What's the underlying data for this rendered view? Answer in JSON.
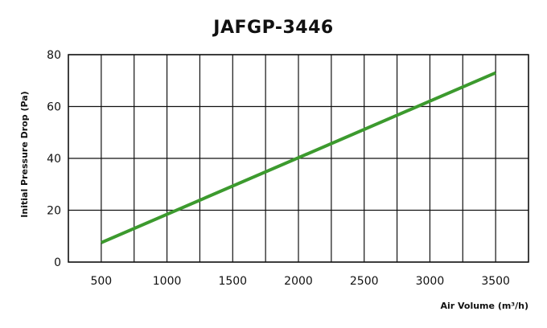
{
  "chart_data": {
    "type": "line",
    "title": "JAFGP-3446",
    "xlabel": "Air Volume (m³/h)",
    "ylabel": "Initial Pressure Drop (Pa)",
    "xlim": [
      250,
      3750
    ],
    "ylim": [
      0,
      80
    ],
    "xticks": [
      500,
      1000,
      1500,
      2000,
      2500,
      3000,
      3500
    ],
    "xgrid": [
      250,
      500,
      750,
      1000,
      1250,
      1500,
      1750,
      2000,
      2250,
      2500,
      2750,
      3000,
      3250,
      3500,
      3750
    ],
    "yticks": [
      0,
      20,
      40,
      60,
      80
    ],
    "ygrid": [
      0,
      20,
      40,
      60,
      80
    ],
    "grid": true,
    "line_color": "#3c9a2e",
    "series": [
      {
        "x": [
          500,
          3500
        ],
        "y": [
          7.5,
          73
        ]
      }
    ]
  }
}
